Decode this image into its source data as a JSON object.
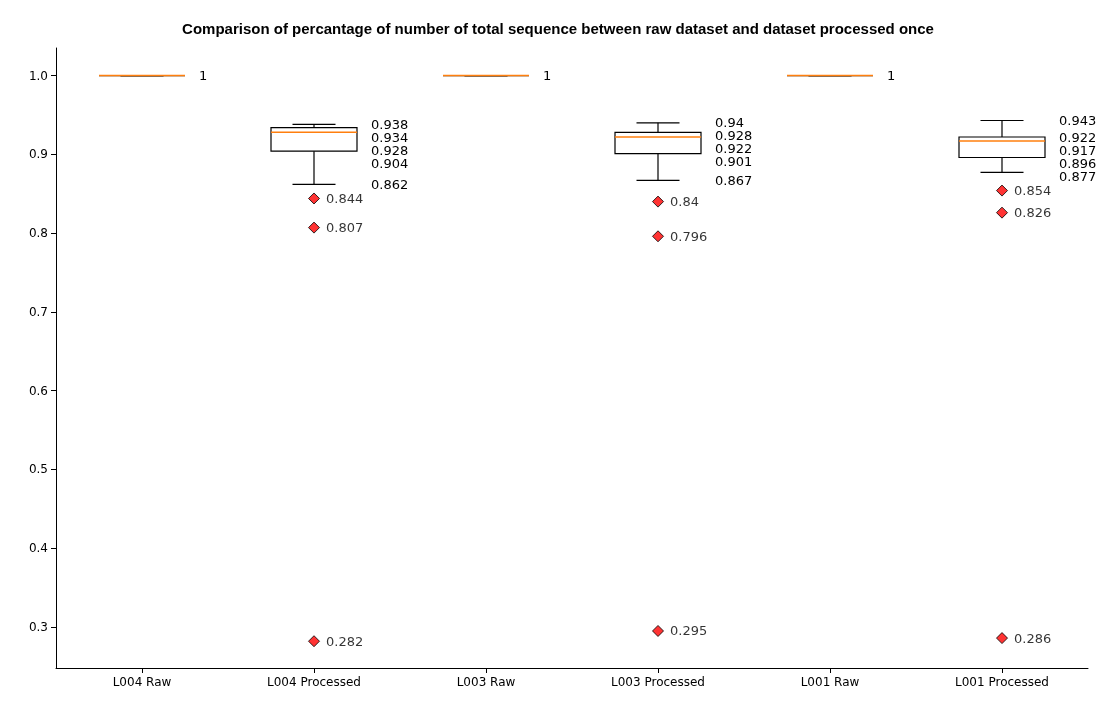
{
  "chart_data": {
    "type": "box",
    "title": "Comparison of percantage of number of total sequence between raw dataset and dataset processed once",
    "categories": [
      "L004 Raw",
      "L004 Processed",
      "L003 Raw",
      "L003 Processed",
      "L001 Raw",
      "L001 Processed"
    ],
    "boxes": [
      {
        "low": 1,
        "q1": 1,
        "median": 1,
        "q3": 1,
        "high": 1
      },
      {
        "low": 0.862,
        "q1": 0.904,
        "median": 0.928,
        "q3": 0.934,
        "high": 0.938
      },
      {
        "low": 1,
        "q1": 1,
        "median": 1,
        "q3": 1,
        "high": 1
      },
      {
        "low": 0.867,
        "q1": 0.901,
        "median": 0.922,
        "q3": 0.928,
        "high": 0.94
      },
      {
        "low": 1,
        "q1": 1,
        "median": 1,
        "q3": 1,
        "high": 1
      },
      {
        "low": 0.877,
        "q1": 0.896,
        "median": 0.917,
        "q3": 0.922,
        "high": 0.943
      }
    ],
    "annotations": [
      "1",
      "0.938",
      "0.934",
      "0.928",
      "0.904",
      "0.862",
      "1",
      "0.94",
      "0.928",
      "0.922",
      "0.901",
      "0.867",
      "1",
      "0.943",
      "0.922",
      "0.917",
      "0.896",
      "0.877"
    ],
    "series": [
      {
        "type": "scatter",
        "color": "#ff0000",
        "x": [
          "L004 Processed",
          "L004 Processed",
          "L004 Processed",
          "L003 Processed",
          "L003 Processed",
          "L003 Processed",
          "L001 Processed",
          "L001 Processed",
          "L001 Processed"
        ],
        "values": [
          0.844,
          0.807,
          0.282,
          0.84,
          0.796,
          0.295,
          0.854,
          0.826,
          0.286
        ]
      }
    ],
    "ylim": [
      0.248,
      1.035
    ],
    "yticks": [
      0.3,
      0.4,
      0.5,
      0.6,
      0.7,
      0.8,
      0.9,
      {
        "value": 1,
        "label": "1.0"
      }
    ],
    "marker": "diamond",
    "data_labels": true
  }
}
